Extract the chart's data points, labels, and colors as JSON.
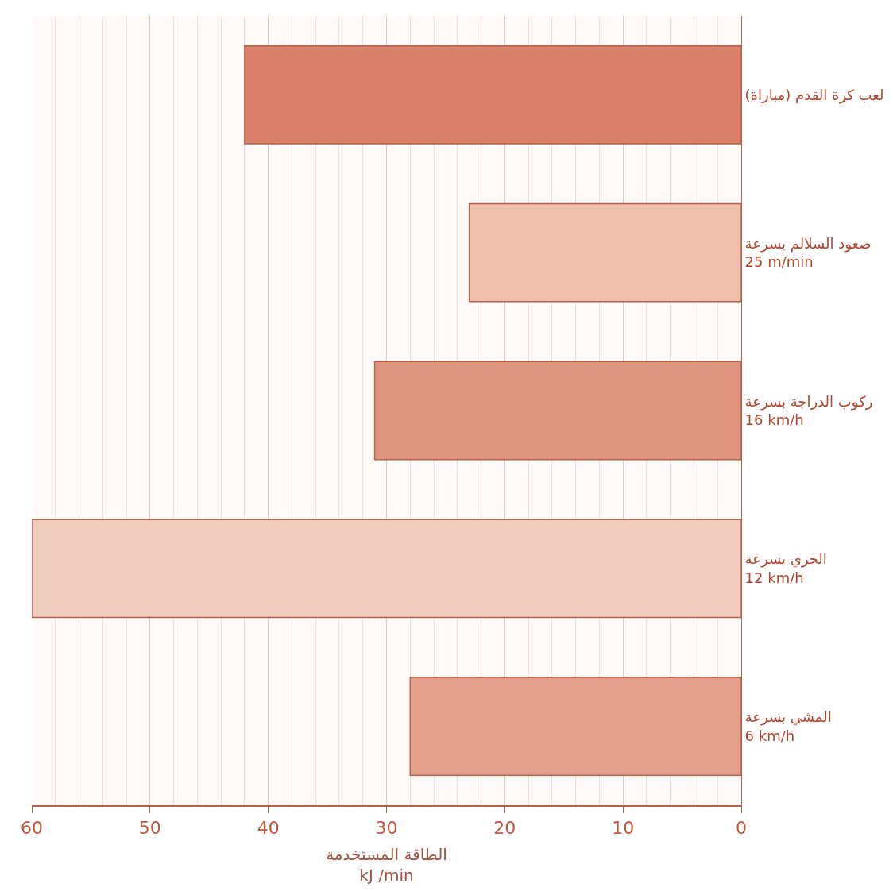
{
  "chart_data": {
    "type": "bar",
    "orientation": "horizontal",
    "categories": [
      "لعب كرة القدم (مباراة)",
      "صعود السلالم بسرعة\n25 m/min",
      "ركوب الدراجة بسرعة\n16 km/h",
      "الجري بسرعة\n12 km/h",
      "المشي بسرعة\n6 km/h"
    ],
    "values": [
      42,
      23,
      31,
      60,
      28
    ],
    "colors": [
      "#d9806a",
      "#efbfae",
      "#df9580",
      "#f2cbc0",
      "#e4a08a"
    ],
    "xlim": [
      60,
      0
    ],
    "xticks": [
      0,
      10,
      20,
      30,
      40,
      50,
      60
    ],
    "xlabel": "الطاقة المستخدمة\nkJ /min",
    "grid": "x"
  }
}
